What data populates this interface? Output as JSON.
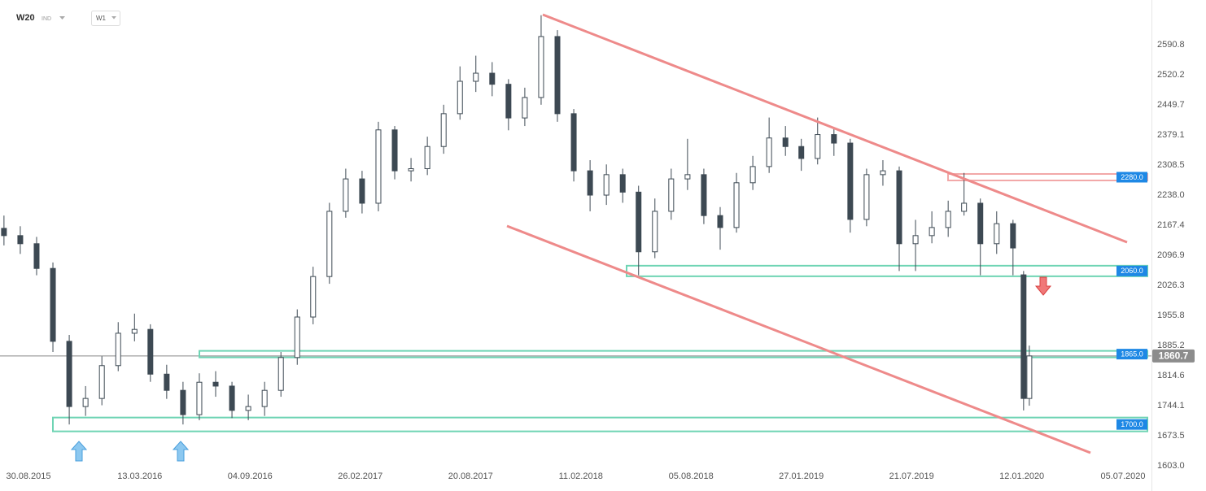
{
  "chart_data": {
    "type": "candlestick",
    "symbol": "W20",
    "market": "IND",
    "interval": "W1",
    "color": "#3d4953",
    "x": [
      -2.8,
      0.9,
      4.6,
      8.3,
      12.0,
      15.7,
      19.4,
      23.1,
      26.8,
      30.4,
      34.1,
      37.8,
      41.5,
      45.2,
      48.9,
      52.6,
      56.3,
      60.0,
      63.7,
      67.3,
      71.0,
      74.7,
      78.4,
      82.1,
      85.8,
      89.5,
      93.2,
      96.9,
      100.6,
      104.2,
      107.9,
      111.6,
      115.3,
      119.0,
      122.7,
      126.4,
      130.1,
      133.8,
      137.5,
      141.1,
      144.8,
      148.5,
      152.2,
      155.9,
      159.6,
      163.3,
      167.0,
      170.7,
      174.4,
      178.0,
      181.7,
      185.4,
      189.1,
      192.8,
      196.5,
      200.2,
      203.9,
      207.6,
      211.3,
      214.9,
      218.6,
      222.3,
      226.0,
      228.4,
      229.7
    ],
    "open": [
      2160,
      2143,
      2124,
      2066,
      1895,
      1742,
      1761,
      1838,
      1914,
      1923,
      1818,
      1780,
      1723,
      1799,
      1790,
      1733,
      1742,
      1780,
      1857,
      1952,
      2047,
      2200,
      2276,
      2219,
      2391,
      2295,
      2300,
      2352,
      2429,
      2505,
      2524,
      2498,
      2419,
      2467,
      2610,
      2429,
      2295,
      2238,
      2286,
      2245,
      2105,
      2200,
      2276,
      2286,
      2190,
      2162,
      2267,
      2305,
      2372,
      2352,
      2324,
      2380,
      2360,
      2181,
      2286,
      2295,
      2124,
      2143,
      2162,
      2200,
      2219,
      2124,
      2171,
      2051,
      1761
    ],
    "high": [
      2190,
      2165,
      2140,
      2080,
      1910,
      1790,
      1860,
      1940,
      1960,
      1935,
      1840,
      1800,
      1820,
      1825,
      1800,
      1770,
      1800,
      1870,
      1970,
      2070,
      2220,
      2300,
      2295,
      2410,
      2400,
      2325,
      2375,
      2450,
      2540,
      2565,
      2550,
      2510,
      2490,
      2660,
      2625,
      2440,
      2320,
      2310,
      2300,
      2260,
      2230,
      2300,
      2370,
      2300,
      2210,
      2290,
      2330,
      2420,
      2400,
      2370,
      2420,
      2395,
      2370,
      2300,
      2320,
      2305,
      2180,
      2200,
      2225,
      2290,
      2230,
      2200,
      2180,
      2060,
      1885
    ],
    "low": [
      2120,
      2100,
      2050,
      1870,
      1700,
      1720,
      1745,
      1825,
      1895,
      1800,
      1760,
      1700,
      1710,
      1765,
      1715,
      1710,
      1720,
      1765,
      1840,
      1935,
      2030,
      2185,
      2195,
      2200,
      2275,
      2270,
      2285,
      2335,
      2415,
      2480,
      2470,
      2390,
      2400,
      2450,
      2410,
      2270,
      2200,
      2215,
      2220,
      2050,
      2090,
      2180,
      2250,
      2170,
      2110,
      2150,
      2250,
      2290,
      2330,
      2295,
      2310,
      2330,
      2150,
      2165,
      2260,
      2060,
      2060,
      2125,
      2140,
      2190,
      2050,
      2100,
      2050,
      1733,
      1744
    ],
    "close": [
      2143,
      2124,
      2066,
      1895,
      1742,
      1761,
      1838,
      1914,
      1923,
      1818,
      1780,
      1723,
      1799,
      1790,
      1733,
      1742,
      1780,
      1857,
      1952,
      2047,
      2200,
      2276,
      2219,
      2391,
      2295,
      2300,
      2352,
      2429,
      2505,
      2524,
      2498,
      2419,
      2467,
      2610,
      2429,
      2295,
      2238,
      2286,
      2245,
      2105,
      2200,
      2276,
      2286,
      2190,
      2162,
      2267,
      2305,
      2372,
      2352,
      2324,
      2380,
      2360,
      2181,
      2286,
      2295,
      2124,
      2143,
      2162,
      2200,
      2219,
      2124,
      2171,
      2114,
      1761,
      1860.7
    ],
    "xlim": [
      -3.7,
      257.4
    ],
    "xticks": [
      {
        "value": 0,
        "label": "30.08.2015"
      },
      {
        "value": 28,
        "label": "13.03.2016"
      },
      {
        "value": 53,
        "label": "04.09.2016"
      },
      {
        "value": 78,
        "label": "26.02.2017"
      },
      {
        "value": 103,
        "label": "20.08.2017"
      },
      {
        "value": 128,
        "label": "11.02.2018"
      },
      {
        "value": 153,
        "label": "05.08.2018"
      },
      {
        "value": 178,
        "label": "27.01.2019"
      },
      {
        "value": 203,
        "label": "21.07.2019"
      },
      {
        "value": 228,
        "label": "12.01.2020"
      },
      {
        "value": 253,
        "label": "05.07.2020"
      }
    ],
    "ylim": [
      1543.9,
      2695.7
    ],
    "yticks": [
      2590.8,
      2520.2,
      2449.7,
      2379.1,
      2308.5,
      {
        "value": 2238,
        "label": "2238.0"
      },
      2167.4,
      2096.9,
      2026.3,
      1955.8,
      1885.2,
      1814.6,
      1744.1,
      1673.5,
      {
        "value": 1603,
        "label": "1603.0"
      }
    ],
    "levels": [
      {
        "value": 2280,
        "label": "2280.0"
      },
      {
        "value": 2060,
        "label": "2060.0"
      },
      {
        "value": 1865,
        "label": "1865.0"
      },
      {
        "value": 1700,
        "label": "1700.0"
      }
    ],
    "last_price": 1860.7
  }
}
